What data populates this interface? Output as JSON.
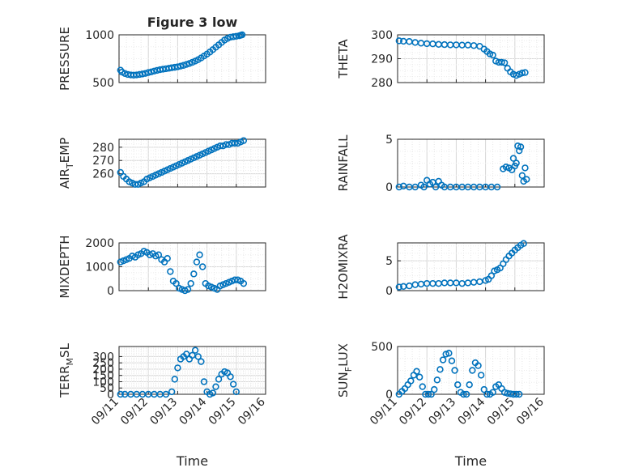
{
  "chart_data": [
    {
      "type": "scatter",
      "title": "Figure 3 low",
      "ylabel": "PRESSURE",
      "xlabel": "",
      "xlim": [
        "09/11",
        "09/16"
      ],
      "ylim": [
        500,
        1000
      ],
      "yticks": [
        "500",
        "1000"
      ],
      "xticks": [],
      "points": [
        [
          0.05,
          630
        ],
        [
          0.1,
          610
        ],
        [
          0.2,
          595
        ],
        [
          0.3,
          585
        ],
        [
          0.4,
          580
        ],
        [
          0.5,
          578
        ],
        [
          0.6,
          580
        ],
        [
          0.7,
          585
        ],
        [
          0.8,
          590
        ],
        [
          0.9,
          596
        ],
        [
          1.0,
          605
        ],
        [
          1.1,
          612
        ],
        [
          1.2,
          620
        ],
        [
          1.3,
          628
        ],
        [
          1.4,
          635
        ],
        [
          1.5,
          640
        ],
        [
          1.6,
          645
        ],
        [
          1.7,
          650
        ],
        [
          1.8,
          655
        ],
        [
          1.9,
          660
        ],
        [
          2.0,
          665
        ],
        [
          2.1,
          672
        ],
        [
          2.2,
          680
        ],
        [
          2.3,
          690
        ],
        [
          2.4,
          700
        ],
        [
          2.5,
          712
        ],
        [
          2.6,
          725
        ],
        [
          2.7,
          740
        ],
        [
          2.8,
          758
        ],
        [
          2.9,
          778
        ],
        [
          3.0,
          798
        ],
        [
          3.1,
          820
        ],
        [
          3.2,
          845
        ],
        [
          3.3,
          870
        ],
        [
          3.4,
          895
        ],
        [
          3.5,
          920
        ],
        [
          3.6,
          945
        ],
        [
          3.7,
          962
        ],
        [
          3.8,
          975
        ],
        [
          3.9,
          980
        ],
        [
          4.0,
          985
        ],
        [
          4.1,
          990
        ],
        [
          4.15,
          995
        ],
        [
          4.2,
          1000
        ]
      ],
      "color": "#0072BD"
    },
    {
      "type": "scatter",
      "title": "",
      "ylabel": "THETA",
      "xlabel": "",
      "xlim": [
        "09/11",
        "09/16"
      ],
      "ylim": [
        280,
        300
      ],
      "yticks": [
        "280",
        "290",
        "300"
      ],
      "xticks": [],
      "points": [
        [
          0.05,
          297.5
        ],
        [
          0.2,
          297.3
        ],
        [
          0.4,
          297.2
        ],
        [
          0.6,
          296.8
        ],
        [
          0.8,
          296.5
        ],
        [
          1.0,
          296.3
        ],
        [
          1.2,
          296.2
        ],
        [
          1.4,
          296.0
        ],
        [
          1.6,
          295.9
        ],
        [
          1.8,
          295.8
        ],
        [
          2.0,
          295.8
        ],
        [
          2.2,
          295.7
        ],
        [
          2.4,
          295.7
        ],
        [
          2.6,
          295.5
        ],
        [
          2.8,
          295.2
        ],
        [
          2.95,
          294.0
        ],
        [
          3.05,
          293.0
        ],
        [
          3.15,
          292.0
        ],
        [
          3.25,
          291.5
        ],
        [
          3.35,
          289.0
        ],
        [
          3.45,
          288.5
        ],
        [
          3.55,
          288.5
        ],
        [
          3.65,
          288.3
        ],
        [
          3.75,
          286.0
        ],
        [
          3.85,
          284.5
        ],
        [
          3.95,
          283.5
        ],
        [
          4.05,
          283.0
        ],
        [
          4.15,
          283.5
        ],
        [
          4.25,
          284.0
        ],
        [
          4.35,
          284.2
        ]
      ],
      "color": "#0072BD"
    },
    {
      "type": "scatter",
      "title": "",
      "ylabel": "AIR_TEMP",
      "xlabel": "",
      "xlim": [
        "09/11",
        "09/16"
      ],
      "ylim": [
        250,
        286
      ],
      "yticks": [
        "260",
        "270",
        "280"
      ],
      "xticks": [],
      "points": [
        [
          0.05,
          261
        ],
        [
          0.15,
          258
        ],
        [
          0.25,
          256
        ],
        [
          0.35,
          254
        ],
        [
          0.45,
          253
        ],
        [
          0.55,
          252
        ],
        [
          0.65,
          252
        ],
        [
          0.75,
          253
        ],
        [
          0.85,
          254
        ],
        [
          0.95,
          256
        ],
        [
          1.05,
          257
        ],
        [
          1.15,
          258
        ],
        [
          1.25,
          259
        ],
        [
          1.35,
          260
        ],
        [
          1.45,
          261
        ],
        [
          1.55,
          262
        ],
        [
          1.65,
          263
        ],
        [
          1.75,
          264
        ],
        [
          1.85,
          265
        ],
        [
          1.95,
          266
        ],
        [
          2.05,
          267
        ],
        [
          2.15,
          268
        ],
        [
          2.25,
          269
        ],
        [
          2.35,
          270
        ],
        [
          2.45,
          271
        ],
        [
          2.55,
          272
        ],
        [
          2.65,
          273
        ],
        [
          2.75,
          274
        ],
        [
          2.85,
          275
        ],
        [
          2.95,
          276
        ],
        [
          3.05,
          277
        ],
        [
          3.15,
          278
        ],
        [
          3.25,
          279
        ],
        [
          3.35,
          280
        ],
        [
          3.45,
          281
        ],
        [
          3.55,
          281
        ],
        [
          3.65,
          282
        ],
        [
          3.75,
          282
        ],
        [
          3.85,
          283
        ],
        [
          3.95,
          283
        ],
        [
          4.05,
          283
        ],
        [
          4.15,
          284
        ],
        [
          4.25,
          285
        ]
      ],
      "color": "#0072BD"
    },
    {
      "type": "scatter",
      "title": "",
      "ylabel": "RAINFALL",
      "xlabel": "",
      "xlim": [
        "09/11",
        "09/16"
      ],
      "ylim": [
        0,
        5
      ],
      "yticks": [
        "0",
        "5"
      ],
      "xticks": [],
      "points": [
        [
          0.05,
          0
        ],
        [
          0.2,
          0.1
        ],
        [
          0.4,
          0
        ],
        [
          0.6,
          0
        ],
        [
          0.8,
          0.2
        ],
        [
          0.9,
          0
        ],
        [
          1.0,
          0.7
        ],
        [
          1.1,
          0.3
        ],
        [
          1.2,
          0.5
        ],
        [
          1.3,
          0
        ],
        [
          1.4,
          0.6
        ],
        [
          1.5,
          0.2
        ],
        [
          1.6,
          0
        ],
        [
          1.8,
          0
        ],
        [
          2.0,
          0
        ],
        [
          2.2,
          0
        ],
        [
          2.4,
          0
        ],
        [
          2.6,
          0
        ],
        [
          2.8,
          0
        ],
        [
          3.0,
          0
        ],
        [
          3.2,
          0
        ],
        [
          3.4,
          0
        ],
        [
          3.6,
          1.9
        ],
        [
          3.7,
          2.1
        ],
        [
          3.8,
          2.0
        ],
        [
          3.9,
          1.8
        ],
        [
          3.95,
          3.0
        ],
        [
          4.0,
          2.2
        ],
        [
          4.05,
          2.5
        ],
        [
          4.1,
          4.3
        ],
        [
          4.15,
          3.8
        ],
        [
          4.2,
          4.2
        ],
        [
          4.25,
          1.2
        ],
        [
          4.3,
          0.6
        ],
        [
          4.35,
          2.0
        ],
        [
          4.4,
          0.8
        ]
      ],
      "color": "#0072BD"
    },
    {
      "type": "scatter",
      "title": "",
      "ylabel": "MIXDEPTH",
      "xlabel": "",
      "xlim": [
        "09/11",
        "09/16"
      ],
      "ylim": [
        0,
        2000
      ],
      "yticks": [
        "0",
        "1000",
        "2000"
      ],
      "xticks": [],
      "points": [
        [
          0.05,
          1200
        ],
        [
          0.15,
          1250
        ],
        [
          0.25,
          1300
        ],
        [
          0.35,
          1350
        ],
        [
          0.45,
          1450
        ],
        [
          0.55,
          1400
        ],
        [
          0.65,
          1500
        ],
        [
          0.75,
          1550
        ],
        [
          0.85,
          1650
        ],
        [
          0.95,
          1600
        ],
        [
          1.05,
          1500
        ],
        [
          1.15,
          1550
        ],
        [
          1.25,
          1450
        ],
        [
          1.35,
          1500
        ],
        [
          1.45,
          1300
        ],
        [
          1.55,
          1200
        ],
        [
          1.65,
          1350
        ],
        [
          1.75,
          800
        ],
        [
          1.85,
          400
        ],
        [
          1.95,
          300
        ],
        [
          2.05,
          100
        ],
        [
          2.15,
          50
        ],
        [
          2.25,
          0
        ],
        [
          2.35,
          50
        ],
        [
          2.45,
          300
        ],
        [
          2.55,
          700
        ],
        [
          2.65,
          1200
        ],
        [
          2.75,
          1500
        ],
        [
          2.85,
          1000
        ],
        [
          2.95,
          300
        ],
        [
          3.05,
          200
        ],
        [
          3.15,
          150
        ],
        [
          3.25,
          100
        ],
        [
          3.35,
          50
        ],
        [
          3.45,
          200
        ],
        [
          3.55,
          250
        ],
        [
          3.65,
          300
        ],
        [
          3.75,
          350
        ],
        [
          3.85,
          400
        ],
        [
          3.95,
          450
        ],
        [
          4.05,
          450
        ],
        [
          4.15,
          400
        ],
        [
          4.25,
          300
        ]
      ],
      "color": "#0072BD"
    },
    {
      "type": "scatter",
      "title": "",
      "ylabel": "H2OMIXRA",
      "xlabel": "",
      "xlim": [
        "09/11",
        "09/16"
      ],
      "ylim": [
        0,
        8
      ],
      "yticks": [
        "0",
        "5"
      ],
      "xticks": [],
      "points": [
        [
          0.05,
          0.6
        ],
        [
          0.2,
          0.7
        ],
        [
          0.4,
          0.8
        ],
        [
          0.6,
          1.0
        ],
        [
          0.8,
          1.1
        ],
        [
          1.0,
          1.2
        ],
        [
          1.2,
          1.2
        ],
        [
          1.4,
          1.2
        ],
        [
          1.6,
          1.3
        ],
        [
          1.8,
          1.3
        ],
        [
          2.0,
          1.3
        ],
        [
          2.2,
          1.2
        ],
        [
          2.4,
          1.3
        ],
        [
          2.6,
          1.4
        ],
        [
          2.8,
          1.5
        ],
        [
          3.0,
          1.7
        ],
        [
          3.1,
          1.9
        ],
        [
          3.2,
          2.5
        ],
        [
          3.3,
          3.3
        ],
        [
          3.4,
          3.5
        ],
        [
          3.5,
          3.8
        ],
        [
          3.6,
          4.5
        ],
        [
          3.7,
          5.2
        ],
        [
          3.8,
          5.8
        ],
        [
          3.9,
          6.3
        ],
        [
          4.0,
          6.8
        ],
        [
          4.1,
          7.2
        ],
        [
          4.2,
          7.6
        ],
        [
          4.3,
          7.9
        ]
      ],
      "color": "#0072BD"
    },
    {
      "type": "scatter",
      "title": "",
      "ylabel": "TERR_MSL",
      "xlabel": "Time",
      "xlim": [
        "09/11",
        "09/16"
      ],
      "ylim": [
        0,
        380
      ],
      "yticks": [
        "0",
        "50",
        "100",
        "150",
        "200",
        "250",
        "300"
      ],
      "xticks": [
        "09/11",
        "09/12",
        "09/13",
        "09/14",
        "09/15",
        "09/16"
      ],
      "points": [
        [
          0.05,
          0
        ],
        [
          0.2,
          0
        ],
        [
          0.4,
          0
        ],
        [
          0.6,
          0
        ],
        [
          0.8,
          0
        ],
        [
          1.0,
          0
        ],
        [
          1.2,
          0
        ],
        [
          1.4,
          0
        ],
        [
          1.6,
          0
        ],
        [
          1.8,
          20
        ],
        [
          1.9,
          120
        ],
        [
          2.0,
          210
        ],
        [
          2.1,
          280
        ],
        [
          2.2,
          300
        ],
        [
          2.3,
          320
        ],
        [
          2.4,
          280
        ],
        [
          2.5,
          310
        ],
        [
          2.6,
          350
        ],
        [
          2.7,
          300
        ],
        [
          2.8,
          260
        ],
        [
          2.9,
          100
        ],
        [
          3.0,
          20
        ],
        [
          3.1,
          0
        ],
        [
          3.2,
          10
        ],
        [
          3.3,
          60
        ],
        [
          3.4,
          120
        ],
        [
          3.5,
          160
        ],
        [
          3.6,
          180
        ],
        [
          3.7,
          170
        ],
        [
          3.8,
          140
        ],
        [
          3.9,
          80
        ],
        [
          4.0,
          20
        ]
      ],
      "color": "#0072BD"
    },
    {
      "type": "scatter",
      "title": "",
      "ylabel": "SUN_FLUX",
      "xlabel": "Time",
      "xlim": [
        "09/11",
        "09/16"
      ],
      "ylim": [
        0,
        500
      ],
      "yticks": [
        "0",
        "500"
      ],
      "xticks": [
        "09/11",
        "09/12",
        "09/13",
        "09/14",
        "09/15",
        "09/16"
      ],
      "points": [
        [
          0.05,
          0
        ],
        [
          0.15,
          30
        ],
        [
          0.25,
          60
        ],
        [
          0.35,
          100
        ],
        [
          0.45,
          140
        ],
        [
          0.55,
          200
        ],
        [
          0.65,
          240
        ],
        [
          0.75,
          180
        ],
        [
          0.85,
          80
        ],
        [
          0.95,
          0
        ],
        [
          1.05,
          0
        ],
        [
          1.15,
          0
        ],
        [
          1.25,
          50
        ],
        [
          1.35,
          150
        ],
        [
          1.45,
          260
        ],
        [
          1.55,
          360
        ],
        [
          1.65,
          420
        ],
        [
          1.75,
          430
        ],
        [
          1.85,
          350
        ],
        [
          1.95,
          250
        ],
        [
          2.05,
          100
        ],
        [
          2.15,
          20
        ],
        [
          2.25,
          0
        ],
        [
          2.35,
          0
        ],
        [
          2.45,
          100
        ],
        [
          2.55,
          250
        ],
        [
          2.65,
          330
        ],
        [
          2.75,
          300
        ],
        [
          2.85,
          200
        ],
        [
          2.95,
          50
        ],
        [
          3.05,
          0
        ],
        [
          3.15,
          0
        ],
        [
          3.25,
          20
        ],
        [
          3.35,
          80
        ],
        [
          3.45,
          100
        ],
        [
          3.55,
          60
        ],
        [
          3.65,
          20
        ],
        [
          3.75,
          10
        ],
        [
          3.85,
          5
        ],
        [
          3.95,
          0
        ],
        [
          4.05,
          0
        ],
        [
          4.15,
          0
        ]
      ],
      "color": "#0072BD"
    }
  ]
}
